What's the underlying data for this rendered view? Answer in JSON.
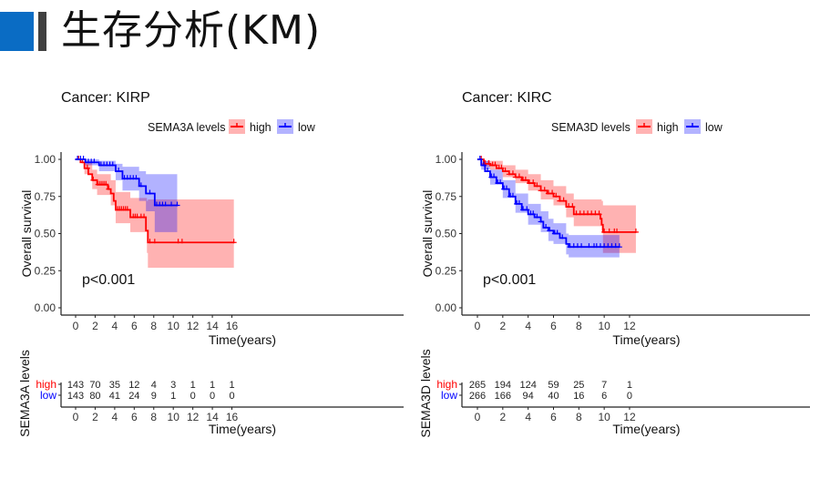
{
  "header": {
    "title": "生存分析(KM)",
    "accent_color": "#0a6cc4",
    "bar_color": "#404040"
  },
  "chart_data": [
    {
      "type": "line",
      "subtype": "kaplan-meier",
      "title": "Cancer: KIRP",
      "legend_title": "SEMA3A levels",
      "legend_placement": "top",
      "xlabel": "Time(years)",
      "ylabel": "Overall survival",
      "xlim": [
        -0.5,
        16.8
      ],
      "ylim": [
        0,
        1
      ],
      "xticks": [
        0,
        2,
        4,
        6,
        8,
        10,
        12,
        14,
        16
      ],
      "yticks": [
        "0.00",
        "0.25",
        "0.50",
        "0.75",
        "1.00"
      ],
      "pvalue": "p<0.001",
      "series": [
        {
          "name": "high",
          "color": "#ff0000",
          "fill": "#ffb3b3",
          "steps": [
            [
              0,
              1.0
            ],
            [
              0.5,
              0.98
            ],
            [
              0.9,
              0.94
            ],
            [
              1.3,
              0.9
            ],
            [
              1.7,
              0.86
            ],
            [
              2.2,
              0.83
            ],
            [
              3.3,
              0.8
            ],
            [
              3.6,
              0.77
            ],
            [
              3.9,
              0.72
            ],
            [
              4.1,
              0.66
            ],
            [
              5.6,
              0.61
            ],
            [
              7.2,
              0.52
            ],
            [
              7.4,
              0.44
            ],
            [
              16.2,
              0.44
            ]
          ],
          "ci": [
            [
              0,
              1.0,
              1.0
            ],
            [
              0.9,
              0.98,
              0.9
            ],
            [
              1.7,
              0.93,
              0.8
            ],
            [
              2.2,
              0.9,
              0.76
            ],
            [
              3.6,
              0.86,
              0.69
            ],
            [
              4.1,
              0.78,
              0.57
            ],
            [
              5.6,
              0.74,
              0.51
            ],
            [
              7.3,
              0.72,
              0.37
            ],
            [
              7.4,
              0.73,
              0.27
            ],
            [
              16.2,
              0.73,
              0.27
            ]
          ],
          "censor": [
            0.3,
            0.7,
            1.2,
            1.8,
            2.3,
            2.5,
            2.7,
            2.9,
            3.1,
            3.4,
            4.3,
            4.5,
            4.7,
            4.9,
            5.1,
            5.3,
            5.9,
            6.1,
            6.3,
            6.7,
            7.0,
            7.6,
            8.1,
            10.5,
            10.9,
            16.2
          ],
          "risk_table": [
            143,
            70,
            35,
            12,
            4,
            3,
            1,
            1,
            1
          ]
        },
        {
          "name": "low",
          "color": "#0000ff",
          "fill": "#b3b3ff",
          "steps": [
            [
              0,
              1.0
            ],
            [
              1.0,
              0.98
            ],
            [
              2.4,
              0.96
            ],
            [
              4.1,
              0.92
            ],
            [
              4.8,
              0.87
            ],
            [
              6.5,
              0.82
            ],
            [
              7.2,
              0.77
            ],
            [
              8.1,
              0.69
            ],
            [
              10.4,
              0.69
            ]
          ],
          "ci": [
            [
              0,
              1.0,
              1.0
            ],
            [
              1.0,
              1.0,
              0.96
            ],
            [
              2.4,
              0.99,
              0.92
            ],
            [
              4.1,
              0.97,
              0.86
            ],
            [
              4.8,
              0.95,
              0.79
            ],
            [
              6.5,
              0.92,
              0.72
            ],
            [
              7.2,
              0.9,
              0.65
            ],
            [
              8.1,
              0.9,
              0.51
            ],
            [
              10.4,
              0.9,
              0.51
            ]
          ],
          "censor": [
            0.2,
            0.5,
            0.8,
            1.3,
            1.6,
            1.9,
            2.6,
            2.9,
            3.2,
            3.5,
            3.8,
            4.4,
            5.0,
            5.3,
            5.6,
            5.9,
            6.2,
            6.7,
            7.6,
            8.3,
            8.6,
            8.9,
            9.2,
            9.8,
            10.4
          ],
          "risk_table": [
            143,
            80,
            41,
            24,
            9,
            1,
            0,
            0,
            0
          ]
        }
      ],
      "risk_table_ylabel": "SEMA3A levels",
      "risk_table_xlabel": "Time(years)"
    },
    {
      "type": "line",
      "subtype": "kaplan-meier",
      "title": "Cancer: KIRC",
      "legend_title": "SEMA3D levels",
      "legend_placement": "top",
      "xlabel": "Time(years)",
      "ylabel": "Overall survival",
      "xlim": [
        -0.6,
        13.1
      ],
      "ylim": [
        0,
        1
      ],
      "xticks": [
        0,
        2,
        4,
        6,
        8,
        10,
        12
      ],
      "yticks": [
        "0.00",
        "0.25",
        "0.50",
        "0.75",
        "1.00"
      ],
      "pvalue": "p<0.001",
      "series": [
        {
          "name": "high",
          "color": "#ff0000",
          "fill": "#ffb3b3",
          "steps": [
            [
              0,
              1.0
            ],
            [
              0.5,
              0.97
            ],
            [
              1,
              0.96
            ],
            [
              1.5,
              0.94
            ],
            [
              2,
              0.92
            ],
            [
              2.5,
              0.9
            ],
            [
              3,
              0.88
            ],
            [
              3.5,
              0.86
            ],
            [
              4,
              0.84
            ],
            [
              4.5,
              0.82
            ],
            [
              5,
              0.79
            ],
            [
              5.5,
              0.77
            ],
            [
              6,
              0.75
            ],
            [
              6.5,
              0.72
            ],
            [
              7,
              0.68
            ],
            [
              7.6,
              0.63
            ],
            [
              9.7,
              0.6
            ],
            [
              9.8,
              0.56
            ],
            [
              9.9,
              0.51
            ],
            [
              12.5,
              0.51
            ]
          ],
          "ci": [
            [
              0,
              1.0,
              1.0
            ],
            [
              0.5,
              0.99,
              0.95
            ],
            [
              1,
              0.99,
              0.93
            ],
            [
              2,
              0.96,
              0.88
            ],
            [
              3,
              0.93,
              0.84
            ],
            [
              4,
              0.9,
              0.79
            ],
            [
              5,
              0.86,
              0.73
            ],
            [
              6,
              0.82,
              0.69
            ],
            [
              7,
              0.77,
              0.61
            ],
            [
              7.6,
              0.73,
              0.55
            ],
            [
              9.8,
              0.72,
              0.52
            ],
            [
              9.9,
              0.69,
              0.37
            ],
            [
              12.5,
              0.69,
              0.37
            ]
          ],
          "censor": [
            0.3,
            0.6,
            0.9,
            1.2,
            1.4,
            1.7,
            1.9,
            2.2,
            2.5,
            2.8,
            3.0,
            3.3,
            3.6,
            3.8,
            4.1,
            4.4,
            4.7,
            5.0,
            5.3,
            5.6,
            5.9,
            6.2,
            6.5,
            6.8,
            7.2,
            7.5,
            7.8,
            8.1,
            8.4,
            8.7,
            9.0,
            9.3,
            9.6,
            10.0,
            10.4,
            10.8,
            11.0,
            12.5
          ],
          "risk_table": [
            265,
            194,
            124,
            59,
            25,
            7,
            1
          ]
        },
        {
          "name": "low",
          "color": "#0000ff",
          "fill": "#b3b3ff",
          "steps": [
            [
              0,
              1.0
            ],
            [
              0.3,
              0.96
            ],
            [
              0.6,
              0.92
            ],
            [
              1,
              0.88
            ],
            [
              1.5,
              0.84
            ],
            [
              2,
              0.8
            ],
            [
              2.5,
              0.75
            ],
            [
              3,
              0.7
            ],
            [
              3.5,
              0.66
            ],
            [
              4,
              0.63
            ],
            [
              4.5,
              0.61
            ],
            [
              5,
              0.58
            ],
            [
              5.2,
              0.54
            ],
            [
              5.6,
              0.52
            ],
            [
              6,
              0.5
            ],
            [
              6.5,
              0.47
            ],
            [
              7,
              0.43
            ],
            [
              7.2,
              0.41
            ],
            [
              11.2,
              0.41
            ]
          ],
          "ci": [
            [
              0,
              1.0,
              1.0
            ],
            [
              0.3,
              0.99,
              0.93
            ],
            [
              1,
              0.93,
              0.83
            ],
            [
              2,
              0.86,
              0.74
            ],
            [
              3,
              0.77,
              0.64
            ],
            [
              4,
              0.7,
              0.56
            ],
            [
              5,
              0.65,
              0.51
            ],
            [
              5.6,
              0.6,
              0.45
            ],
            [
              6,
              0.57,
              0.43
            ],
            [
              7,
              0.5,
              0.36
            ],
            [
              7.2,
              0.49,
              0.34
            ],
            [
              11.2,
              0.49,
              0.34
            ]
          ],
          "censor": [
            0.2,
            0.5,
            0.8,
            1.1,
            1.3,
            1.6,
            1.8,
            2.1,
            2.3,
            2.6,
            2.8,
            3.1,
            3.3,
            3.6,
            3.9,
            4.2,
            4.4,
            4.7,
            5.0,
            5.4,
            5.7,
            6.1,
            6.3,
            6.7,
            7.3,
            7.6,
            7.9,
            8.2,
            8.8,
            9.2,
            9.4,
            9.7,
            10.0,
            10.3,
            10.6,
            10.9,
            11.2
          ],
          "risk_table": [
            266,
            166,
            94,
            40,
            16,
            6,
            0
          ]
        }
      ],
      "risk_table_ylabel": "SEMA3D levels",
      "risk_table_xlabel": "Time(years)"
    }
  ]
}
